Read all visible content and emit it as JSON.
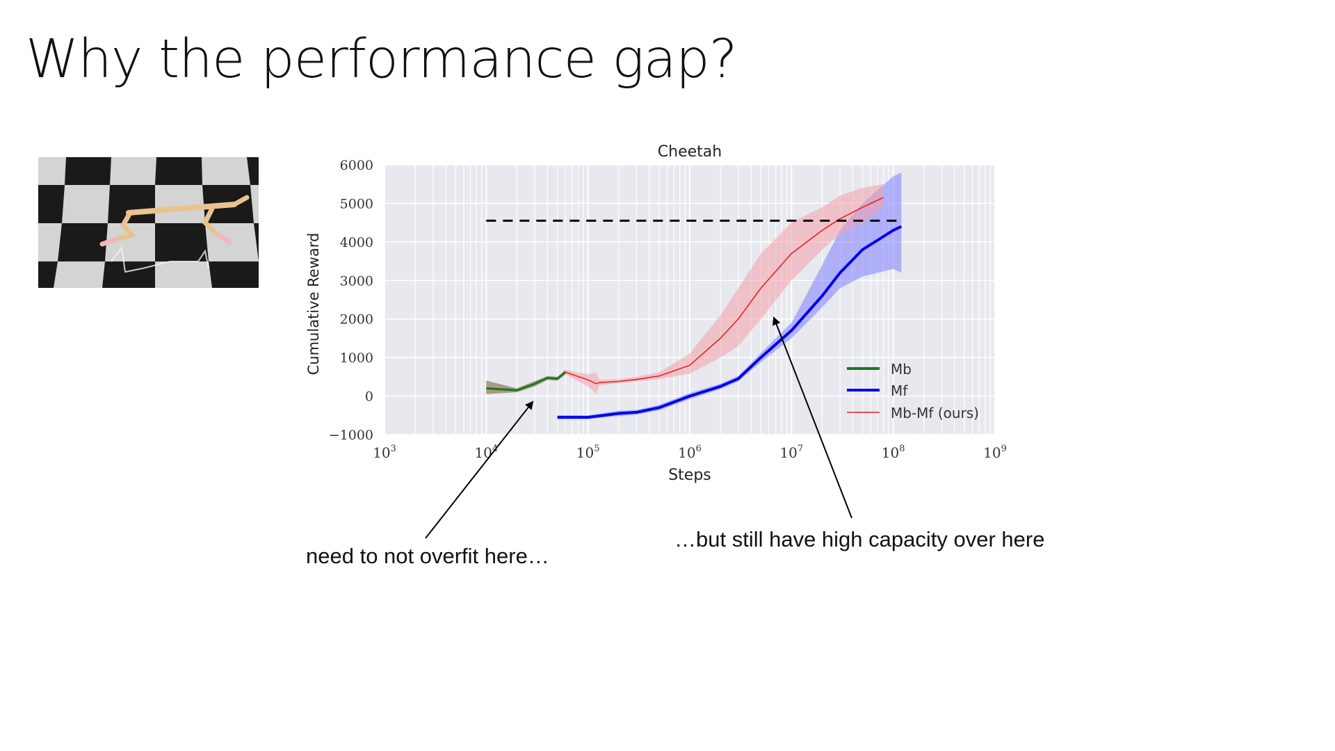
{
  "slide": {
    "title": "Why the performance gap?",
    "callout_left": "need to not overfit here…",
    "callout_right": "…but still have high capacity over here"
  },
  "image": {
    "description_icon": "half-cheetah-robot-checkerboard-image",
    "checker_dark": "#1a1a1a",
    "checker_light": "#d4d4d4",
    "body_color": "#e9c38f",
    "leg_color": "#f2b7be"
  },
  "chart_data": {
    "type": "line",
    "title": "Cheetah",
    "xlabel": "Steps",
    "ylabel": "Cumulative Reward",
    "x_scale": "log",
    "xlim": [
      1000,
      1000000000
    ],
    "ylim": [
      -1000,
      6000
    ],
    "x_tick_labels": [
      "10",
      "10",
      "10",
      "10",
      "10",
      "10",
      "10"
    ],
    "x_tick_exponents": [
      "3",
      "4",
      "5",
      "6",
      "7",
      "8",
      "9"
    ],
    "y_ticks": [
      6000,
      5000,
      4000,
      3000,
      2000,
      1000,
      0,
      -1000
    ],
    "y_tick_labels": [
      "6000",
      "5000",
      "4000",
      "3000",
      "2000",
      "1000",
      "0",
      "−1000"
    ],
    "grid": true,
    "legend_position": "bottom-right",
    "reference_line": {
      "y": 4550,
      "x": [
        10000,
        120000000
      ],
      "style": "dashed",
      "color": "#000000"
    },
    "series": [
      {
        "name": "Mb",
        "color": "#1a7a1a",
        "band_color": "#7a5530",
        "x": [
          10000,
          20000,
          30000,
          40000,
          50000,
          60000
        ],
        "y": [
          200,
          150,
          320,
          470,
          450,
          620
        ],
        "lower": [
          50,
          100,
          250,
          420,
          400,
          560
        ],
        "upper": [
          400,
          200,
          390,
          520,
          500,
          680
        ]
      },
      {
        "name": "Mf",
        "color": "#0000ee",
        "band_color": "#8080ff",
        "x": [
          50000,
          100000,
          200000,
          300000,
          500000,
          1000000,
          2000000,
          3000000,
          5000000,
          10000000,
          20000000,
          30000000,
          50000000,
          100000000,
          120000000
        ],
        "y": [
          -550,
          -550,
          -450,
          -420,
          -300,
          0,
          250,
          450,
          1000,
          1700,
          2600,
          3200,
          3800,
          4300,
          4400
        ],
        "lower": [
          -600,
          -600,
          -520,
          -480,
          -370,
          -80,
          180,
          380,
          880,
          1500,
          2300,
          2800,
          3100,
          3300,
          3200
        ],
        "upper": [
          -500,
          -500,
          -380,
          -360,
          -230,
          80,
          320,
          520,
          1120,
          1900,
          3400,
          4300,
          5000,
          5700,
          5800
        ]
      },
      {
        "name": "Mb-Mf (ours)",
        "color": "#ee2020",
        "band_color": "#f2a0a8",
        "x": [
          60000,
          100000,
          120000,
          130000,
          200000,
          300000,
          500000,
          1000000,
          2000000,
          3000000,
          5000000,
          10000000,
          20000000,
          30000000,
          50000000,
          80000000
        ],
        "y": [
          620,
          420,
          320,
          350,
          380,
          430,
          520,
          800,
          1500,
          2000,
          2800,
          3700,
          4300,
          4600,
          4900,
          5150
        ],
        "lower": [
          560,
          250,
          50,
          280,
          330,
          380,
          440,
          580,
          1000,
          1300,
          2000,
          3000,
          3800,
          4200,
          4500,
          4900
        ],
        "upper": [
          680,
          560,
          620,
          420,
          440,
          500,
          620,
          1100,
          2100,
          2800,
          3700,
          4500,
          4900,
          5200,
          5400,
          5500
        ]
      }
    ]
  }
}
